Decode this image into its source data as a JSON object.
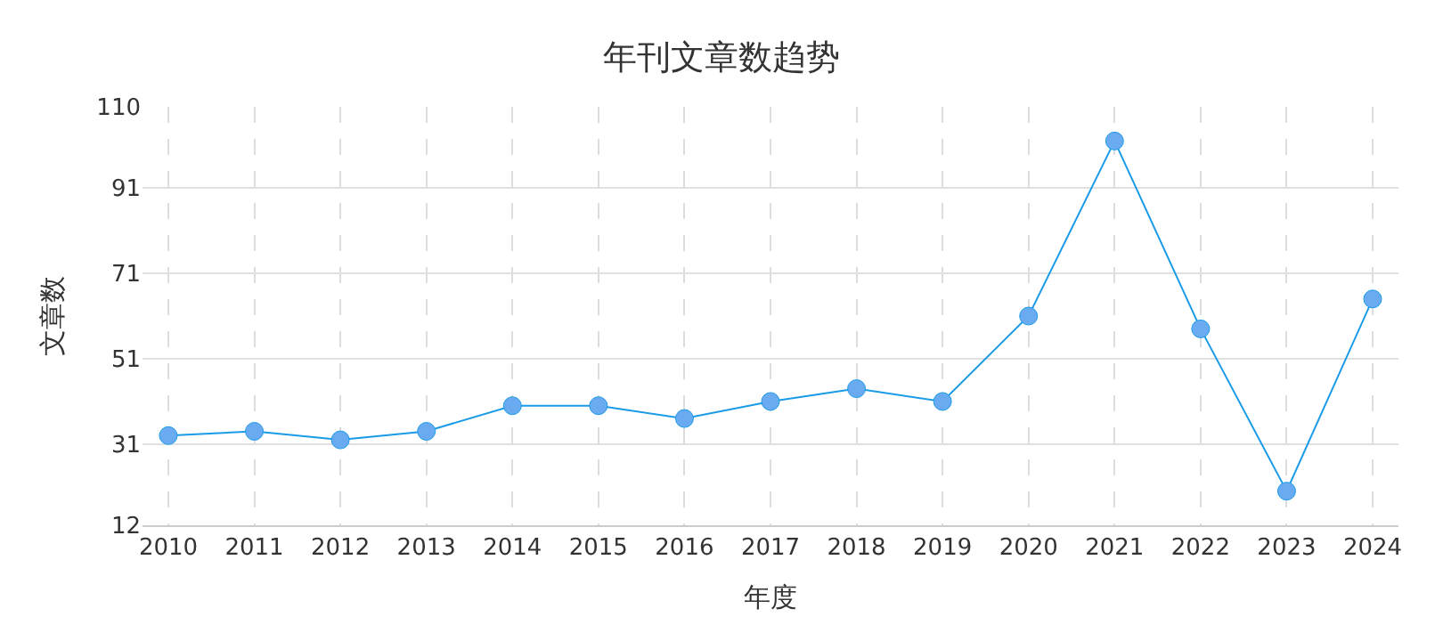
{
  "chart_data": {
    "type": "line",
    "title": "年刊文章数趋势",
    "xlabel": "年度",
    "ylabel": "文章数",
    "categories": [
      "2010",
      "2011",
      "2012",
      "2013",
      "2014",
      "2015",
      "2016",
      "2017",
      "2018",
      "2019",
      "2020",
      "2021",
      "2022",
      "2023",
      "2024"
    ],
    "series": [
      {
        "color": "#1a9be8",
        "values": [
          33,
          34,
          32,
          34,
          40,
          40,
          37,
          41,
          44,
          41,
          61,
          102,
          58,
          20,
          65
        ]
      }
    ],
    "ylim": [
      12,
      110
    ],
    "yticks": [
      12,
      31,
      51,
      71,
      91,
      110
    ],
    "grid": true,
    "marker": "circle",
    "legend": false
  }
}
